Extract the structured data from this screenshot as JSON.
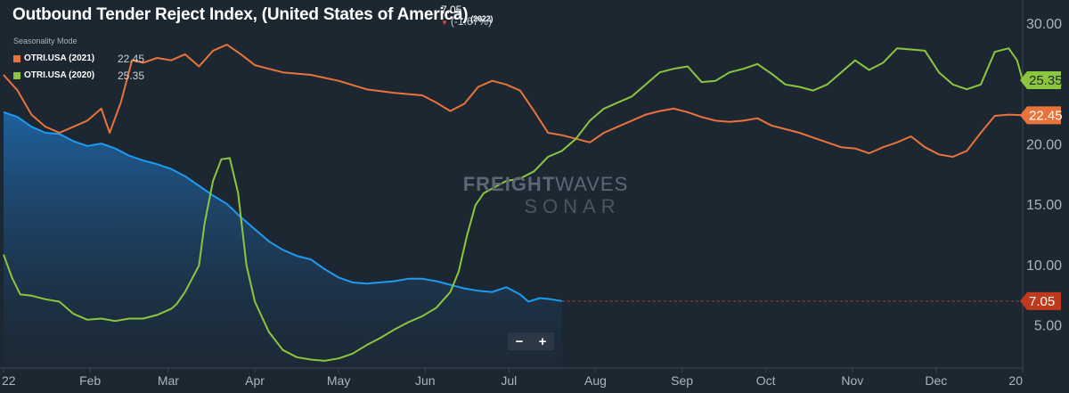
{
  "header": {
    "title": "Outbound Tender Reject Index, (United States of America)",
    "title_year": "(2022)",
    "last_value": "7.05",
    "change": "(-1.67%)",
    "change_arrow_icon": "down-triangle-icon",
    "seasonality_label": "Seasonality Mode"
  },
  "legend": [
    {
      "name": "OTRI.USA (2021)",
      "value": "22.45",
      "color": "#e8743b"
    },
    {
      "name": "OTRI.USA (2020)",
      "value": "25.35",
      "color": "#8cc63f"
    }
  ],
  "zoom": {
    "minus_label": "−",
    "plus_label": "+"
  },
  "watermark": {
    "line1_bold": "FREIGHT",
    "line1_thin": "WAVES",
    "line2": "SONAR"
  },
  "colors": {
    "background": "#1d2731",
    "series_2022": "#1e9af0",
    "series_2021": "#e8743b",
    "series_2020": "#8cc63f",
    "last_marker": "#c0391b"
  },
  "chart_data": {
    "type": "line",
    "y_axis_side": "right",
    "ylim": [
      1.5,
      32
    ],
    "y_ticks": [
      "30.00",
      "25.00",
      "20.00",
      "15.00",
      "10.00",
      "5.00"
    ],
    "y_tick_values": [
      30,
      25,
      20,
      15,
      10,
      5
    ],
    "x_tick_labels": [
      "22",
      "Feb",
      "Mar",
      "Apr",
      "May",
      "Jun",
      "Jul",
      "Aug",
      "Sep",
      "Oct",
      "Nov",
      "Dec",
      "20"
    ],
    "x_tick_days": [
      0,
      31,
      59,
      90,
      120,
      151,
      181,
      212,
      243,
      273,
      304,
      334,
      365
    ],
    "xlim_days": [
      0,
      365
    ],
    "grid": false,
    "value_tags": [
      {
        "label": "25.35",
        "value": 25.35,
        "color": "#8cc63f",
        "text_color": "#1d2731"
      },
      {
        "label": "22.45",
        "value": 22.45,
        "color": "#e8743b",
        "text_color": "#ffffff"
      },
      {
        "label": "7.05",
        "value": 7.05,
        "color": "#c0391b",
        "text_color": "#ffffff"
      }
    ],
    "series": [
      {
        "name": "OTRI.USA (2022)",
        "color": "#1e9af0",
        "area": true,
        "points": [
          [
            0,
            22.7
          ],
          [
            5,
            22.3
          ],
          [
            10,
            21.5
          ],
          [
            15,
            21.0
          ],
          [
            20,
            20.9
          ],
          [
            25,
            20.3
          ],
          [
            30,
            19.9
          ],
          [
            35,
            20.1
          ],
          [
            40,
            19.7
          ],
          [
            45,
            19.1
          ],
          [
            50,
            18.7
          ],
          [
            55,
            18.4
          ],
          [
            60,
            18.0
          ],
          [
            65,
            17.4
          ],
          [
            70,
            16.6
          ],
          [
            75,
            15.8
          ],
          [
            80,
            15.1
          ],
          [
            85,
            14.0
          ],
          [
            90,
            13.0
          ],
          [
            95,
            12.0
          ],
          [
            100,
            11.3
          ],
          [
            105,
            10.8
          ],
          [
            110,
            10.5
          ],
          [
            115,
            9.7
          ],
          [
            120,
            9.0
          ],
          [
            125,
            8.6
          ],
          [
            130,
            8.5
          ],
          [
            135,
            8.6
          ],
          [
            140,
            8.7
          ],
          [
            145,
            8.9
          ],
          [
            150,
            8.9
          ],
          [
            155,
            8.7
          ],
          [
            160,
            8.4
          ],
          [
            165,
            8.1
          ],
          [
            170,
            7.9
          ],
          [
            175,
            7.8
          ],
          [
            180,
            8.2
          ],
          [
            185,
            7.6
          ],
          [
            188,
            7.0
          ],
          [
            192,
            7.3
          ],
          [
            196,
            7.2
          ],
          [
            200,
            7.05
          ]
        ]
      },
      {
        "name": "OTRI.USA (2021)",
        "color": "#e8743b",
        "points": [
          [
            0,
            25.8
          ],
          [
            5,
            24.5
          ],
          [
            10,
            22.5
          ],
          [
            15,
            21.5
          ],
          [
            20,
            21.0
          ],
          [
            25,
            21.5
          ],
          [
            30,
            22.0
          ],
          [
            35,
            23.0
          ],
          [
            38,
            21.0
          ],
          [
            42,
            23.5
          ],
          [
            46,
            27.0
          ],
          [
            50,
            26.8
          ],
          [
            55,
            27.2
          ],
          [
            60,
            27.0
          ],
          [
            65,
            27.5
          ],
          [
            70,
            26.5
          ],
          [
            75,
            27.8
          ],
          [
            80,
            28.3
          ],
          [
            85,
            27.5
          ],
          [
            90,
            26.6
          ],
          [
            95,
            26.3
          ],
          [
            100,
            26.0
          ],
          [
            110,
            25.8
          ],
          [
            120,
            25.3
          ],
          [
            130,
            24.6
          ],
          [
            140,
            24.3
          ],
          [
            150,
            24.1
          ],
          [
            155,
            23.5
          ],
          [
            160,
            22.8
          ],
          [
            165,
            23.4
          ],
          [
            170,
            24.8
          ],
          [
            175,
            25.3
          ],
          [
            180,
            25.0
          ],
          [
            185,
            24.5
          ],
          [
            190,
            22.8
          ],
          [
            195,
            21.0
          ],
          [
            200,
            20.8
          ],
          [
            205,
            20.5
          ],
          [
            210,
            20.2
          ],
          [
            215,
            21.0
          ],
          [
            220,
            21.5
          ],
          [
            225,
            22.0
          ],
          [
            230,
            22.5
          ],
          [
            235,
            22.8
          ],
          [
            240,
            23.0
          ],
          [
            245,
            22.7
          ],
          [
            250,
            22.3
          ],
          [
            255,
            22.0
          ],
          [
            260,
            21.9
          ],
          [
            265,
            22.0
          ],
          [
            270,
            22.2
          ],
          [
            275,
            21.6
          ],
          [
            280,
            21.3
          ],
          [
            285,
            21.0
          ],
          [
            290,
            20.6
          ],
          [
            295,
            20.2
          ],
          [
            300,
            19.8
          ],
          [
            305,
            19.7
          ],
          [
            310,
            19.3
          ],
          [
            315,
            19.8
          ],
          [
            320,
            20.2
          ],
          [
            325,
            20.7
          ],
          [
            330,
            19.8
          ],
          [
            335,
            19.2
          ],
          [
            340,
            19.0
          ],
          [
            345,
            19.5
          ],
          [
            350,
            21.0
          ],
          [
            355,
            22.4
          ],
          [
            360,
            22.5
          ],
          [
            365,
            22.45
          ]
        ]
      },
      {
        "name": "OTRI.USA (2020)",
        "color": "#8cc63f",
        "points": [
          [
            0,
            10.9
          ],
          [
            3,
            9.0
          ],
          [
            6,
            7.6
          ],
          [
            10,
            7.5
          ],
          [
            15,
            7.2
          ],
          [
            20,
            7.0
          ],
          [
            25,
            6.0
          ],
          [
            30,
            5.5
          ],
          [
            35,
            5.6
          ],
          [
            40,
            5.4
          ],
          [
            45,
            5.6
          ],
          [
            50,
            5.6
          ],
          [
            55,
            5.9
          ],
          [
            60,
            6.4
          ],
          [
            62,
            6.8
          ],
          [
            65,
            7.8
          ],
          [
            70,
            10.0
          ],
          [
            72,
            13.5
          ],
          [
            75,
            17.0
          ],
          [
            78,
            18.8
          ],
          [
            81,
            18.9
          ],
          [
            84,
            16.0
          ],
          [
            87,
            10.0
          ],
          [
            90,
            7.0
          ],
          [
            95,
            4.5
          ],
          [
            100,
            3.0
          ],
          [
            105,
            2.4
          ],
          [
            110,
            2.2
          ],
          [
            115,
            2.1
          ],
          [
            120,
            2.3
          ],
          [
            125,
            2.7
          ],
          [
            130,
            3.4
          ],
          [
            135,
            4.0
          ],
          [
            140,
            4.7
          ],
          [
            145,
            5.3
          ],
          [
            150,
            5.8
          ],
          [
            155,
            6.5
          ],
          [
            160,
            7.8
          ],
          [
            163,
            9.5
          ],
          [
            166,
            12.5
          ],
          [
            169,
            15.0
          ],
          [
            172,
            16.0
          ],
          [
            176,
            16.5
          ],
          [
            180,
            17.0
          ],
          [
            185,
            17.2
          ],
          [
            190,
            17.8
          ],
          [
            195,
            19.0
          ],
          [
            200,
            19.5
          ],
          [
            205,
            20.5
          ],
          [
            210,
            22.0
          ],
          [
            215,
            23.0
          ],
          [
            220,
            23.5
          ],
          [
            225,
            24.0
          ],
          [
            230,
            25.0
          ],
          [
            235,
            26.0
          ],
          [
            240,
            26.3
          ],
          [
            245,
            26.5
          ],
          [
            250,
            25.2
          ],
          [
            255,
            25.3
          ],
          [
            260,
            26.0
          ],
          [
            265,
            26.3
          ],
          [
            270,
            26.7
          ],
          [
            275,
            25.9
          ],
          [
            280,
            25.0
          ],
          [
            285,
            24.8
          ],
          [
            290,
            24.5
          ],
          [
            295,
            25.0
          ],
          [
            300,
            26.0
          ],
          [
            305,
            27.0
          ],
          [
            310,
            26.2
          ],
          [
            315,
            26.8
          ],
          [
            320,
            28.0
          ],
          [
            325,
            27.9
          ],
          [
            330,
            27.8
          ],
          [
            335,
            26.0
          ],
          [
            340,
            25.0
          ],
          [
            345,
            24.6
          ],
          [
            350,
            25.0
          ],
          [
            355,
            27.7
          ],
          [
            360,
            28.0
          ],
          [
            363,
            27.0
          ],
          [
            365,
            25.35
          ]
        ]
      }
    ],
    "reference_line": {
      "value": 7.05,
      "color": "#c0391b",
      "dashed": true
    }
  }
}
